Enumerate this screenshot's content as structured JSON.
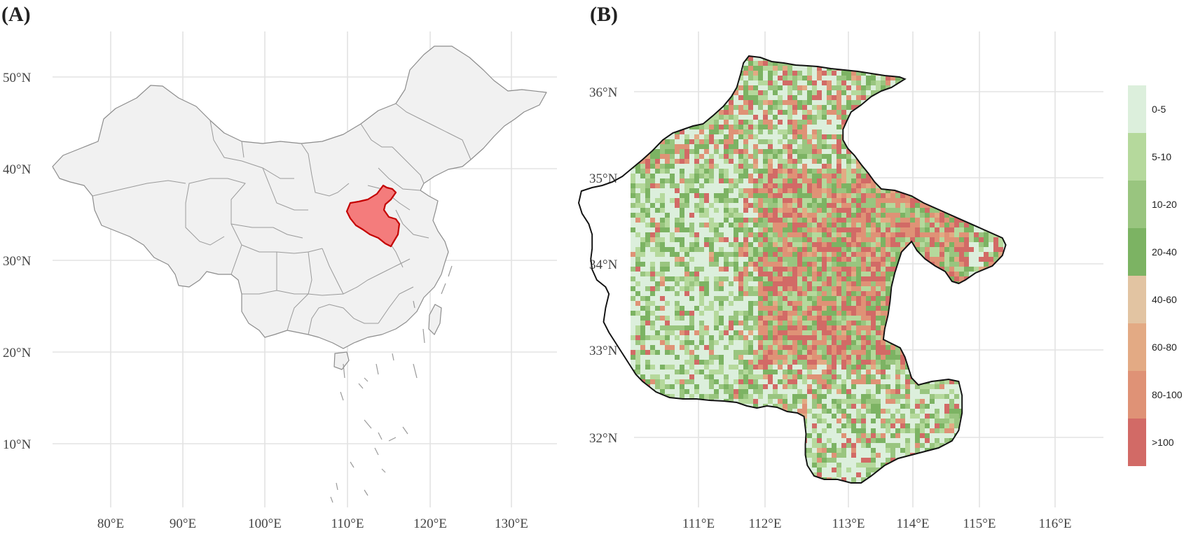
{
  "panels": {
    "a": {
      "label": "(A)",
      "lat_ticks": [
        "50°N",
        "40°N",
        "30°N",
        "20°N",
        "10°N"
      ],
      "lon_ticks": [
        "80°E",
        "90°E",
        "100°E",
        "110°E",
        "120°E",
        "130°E"
      ],
      "highlight_color": "#f47c7c",
      "highlight_outline": "#c40000"
    },
    "b": {
      "label": "(B)",
      "lat_ticks": [
        "36°N",
        "35°N",
        "34°N",
        "33°N",
        "32°N"
      ],
      "lon_ticks": [
        "111°E",
        "112°E",
        "113°E",
        "114°E",
        "115°E",
        "116°E"
      ]
    }
  },
  "legend": {
    "classes": [
      {
        "label": "0-5",
        "color": "#dcefdc"
      },
      {
        "label": "5-10",
        "color": "#b5d99c"
      },
      {
        "label": "10-20",
        "color": "#99c57f"
      },
      {
        "label": "20-40",
        "color": "#7cb363"
      },
      {
        "label": "40-60",
        "color": "#e2c4a2"
      },
      {
        "label": "60-80",
        "color": "#e3aa84"
      },
      {
        "label": "80-100",
        "color": "#df9276"
      },
      {
        "label": ">100",
        "color": "#d26a66"
      }
    ]
  }
}
